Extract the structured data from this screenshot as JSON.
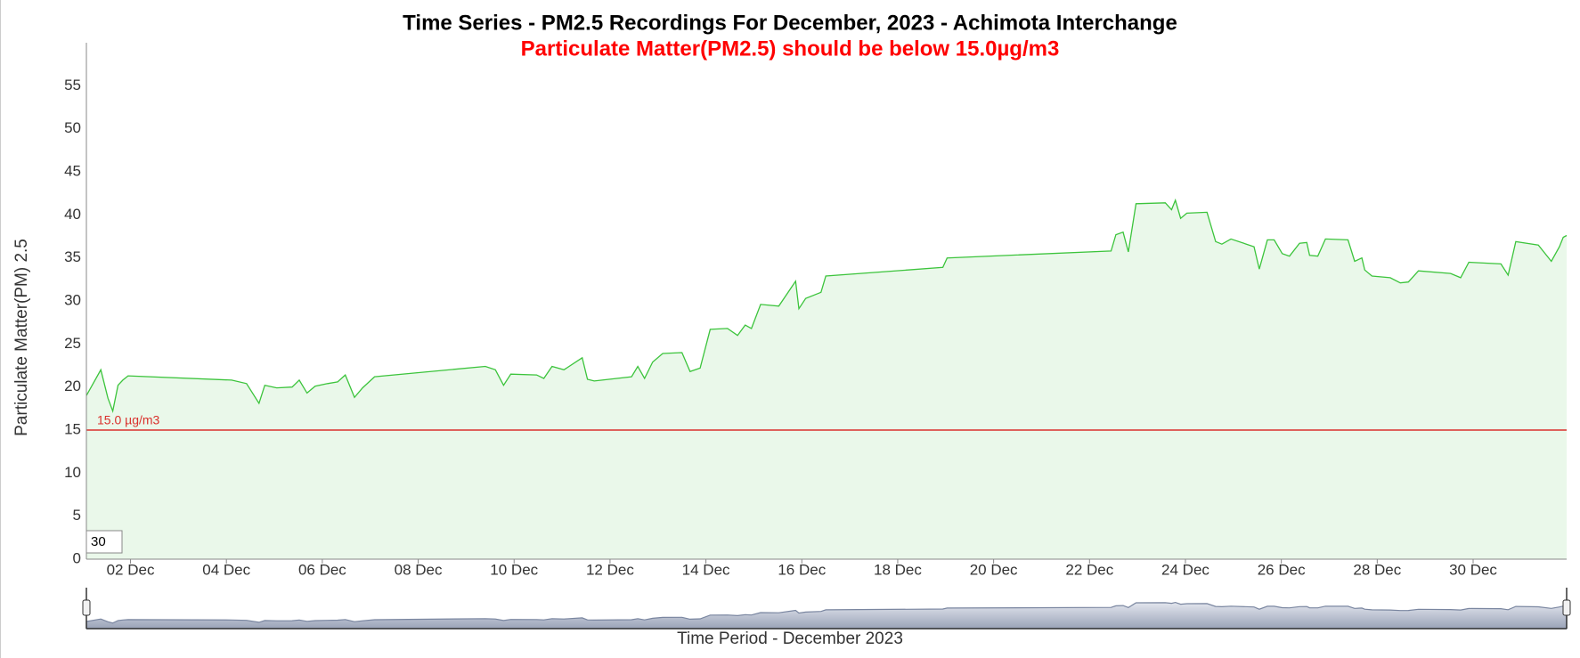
{
  "chart_data": {
    "type": "line",
    "title": "Time Series - PM2.5 Recordings For December, 2023 - Achimota Interchange",
    "subtitle": "Particulate Matter(PM2.5) should be below 15.0µg/m3",
    "y_label": "Particulate Matter(PM) 2.5",
    "x_label": "Time Period - December 2023",
    "range_input": "30",
    "threshold": {
      "value": 15,
      "label": "15.0 µg/m3",
      "color": "#d9302c"
    },
    "color": "#3cc43c",
    "fill": "#eaf8ea",
    "x": [
      1.08,
      1.38,
      1.53,
      1.63,
      1.74,
      1.84,
      1.95,
      4.11,
      4.42,
      4.68,
      4.8,
      5.05,
      5.37,
      5.52,
      5.68,
      5.85,
      6.11,
      6.32,
      6.48,
      6.67,
      6.84,
      7.09,
      9.4,
      9.61,
      9.78,
      9.93,
      10.47,
      10.62,
      10.79,
      11.04,
      11.42,
      11.53,
      11.67,
      12.45,
      12.58,
      12.72,
      12.89,
      13.1,
      13.5,
      13.67,
      13.88,
      14.09,
      14.45,
      14.66,
      14.82,
      14.95,
      15.14,
      15.52,
      15.87,
      15.94,
      16.08,
      16.4,
      16.5,
      18.94,
      19.03,
      22.45,
      22.55,
      22.7,
      22.81,
      22.97,
      23.58,
      23.71,
      23.79,
      23.9,
      24.03,
      24.45,
      24.63,
      24.76,
      24.95,
      25.43,
      25.54,
      25.71,
      25.85,
      26.02,
      26.17,
      26.38,
      26.53,
      26.59,
      26.76,
      26.92,
      27.39,
      27.53,
      27.68,
      27.74,
      27.89,
      28.27,
      28.48,
      28.65,
      28.86,
      29.53,
      29.74,
      29.91,
      30.58,
      30.73,
      30.89,
      31.36,
      31.63,
      31.8,
      31.88,
      31.95
    ],
    "values": [
      19,
      22,
      18.7,
      17.2,
      20.2,
      20.8,
      21.3,
      20.8,
      20.4,
      18.1,
      20.2,
      19.9,
      20,
      20.8,
      19.3,
      20.1,
      20.4,
      20.6,
      21.4,
      18.8,
      19.9,
      21.2,
      22.4,
      22,
      20.2,
      21.5,
      21.4,
      21,
      22.4,
      22,
      23.4,
      20.9,
      20.7,
      21.2,
      22.4,
      21,
      22.9,
      23.9,
      24,
      21.8,
      22.2,
      26.7,
      26.8,
      26,
      27.2,
      26.8,
      29.6,
      29.4,
      32.3,
      29.1,
      30.3,
      31,
      32.9,
      33.9,
      35,
      35.8,
      37.7,
      38,
      35.7,
      41.3,
      41.4,
      40.6,
      41.7,
      39.6,
      40.2,
      40.3,
      36.9,
      36.6,
      37.2,
      36.3,
      33.7,
      37.1,
      37.1,
      35.5,
      35.2,
      36.7,
      36.8,
      35.3,
      35.2,
      37.2,
      37.1,
      34.6,
      35,
      33.6,
      32.9,
      32.7,
      32.1,
      32.2,
      33.5,
      33.2,
      32.7,
      34.5,
      34.3,
      33,
      36.9,
      36.5,
      34.6,
      36.3,
      37.4,
      37.6
    ],
    "xlim": [
      1.08,
      31.95
    ],
    "ylim": [
      0,
      60
    ],
    "yticks": [
      0,
      5,
      10,
      15,
      20,
      25,
      30,
      35,
      40,
      45,
      50,
      55
    ],
    "xticks": [
      {
        "value": 2,
        "label": "02 Dec"
      },
      {
        "value": 4,
        "label": "04 Dec"
      },
      {
        "value": 6,
        "label": "06 Dec"
      },
      {
        "value": 8,
        "label": "08 Dec"
      },
      {
        "value": 10,
        "label": "10 Dec"
      },
      {
        "value": 12,
        "label": "12 Dec"
      },
      {
        "value": 14,
        "label": "14 Dec"
      },
      {
        "value": 16,
        "label": "16 Dec"
      },
      {
        "value": 18,
        "label": "18 Dec"
      },
      {
        "value": 20,
        "label": "20 Dec"
      },
      {
        "value": 22,
        "label": "22 Dec"
      },
      {
        "value": 24,
        "label": "24 Dec"
      },
      {
        "value": 26,
        "label": "26 Dec"
      },
      {
        "value": 28,
        "label": "28 Dec"
      },
      {
        "value": 30,
        "label": "30 Dec"
      }
    ]
  }
}
